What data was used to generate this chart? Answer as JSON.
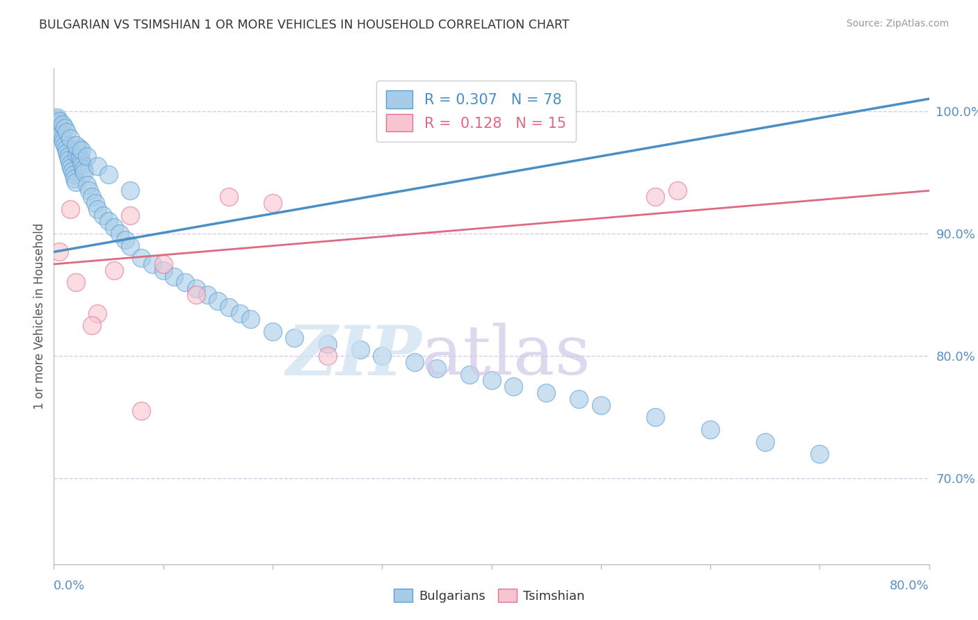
{
  "title": "BULGARIAN VS TSIMSHIAN 1 OR MORE VEHICLES IN HOUSEHOLD CORRELATION CHART",
  "source": "Source: ZipAtlas.com",
  "ylabel": "1 or more Vehicles in Household",
  "xlim": [
    0.0,
    80.0
  ],
  "ylim": [
    63.0,
    103.5
  ],
  "yticks": [
    70.0,
    80.0,
    90.0,
    100.0
  ],
  "ytick_labels": [
    "70.0%",
    "80.0%",
    "90.0%",
    "100.0%"
  ],
  "xtick_positions": [
    0.0,
    10.0,
    20.0,
    30.0,
    40.0,
    50.0,
    60.0,
    70.0,
    80.0
  ],
  "blue_R": "0.307",
  "blue_N": "78",
  "pink_R": "0.128",
  "pink_N": "15",
  "blue_fill": "#a8cce8",
  "blue_edge": "#5a9fd4",
  "pink_fill": "#f7c5d0",
  "pink_edge": "#e07090",
  "blue_line": "#4a8fc4",
  "pink_line": "#e06880",
  "grid_color": "#d8c8e8",
  "axis_color": "#bbbbbb",
  "label_color": "#5a8fc4",
  "title_color": "#333333",
  "source_color": "#999999",
  "ylabel_color": "#555555",
  "blue_scatter_x": [
    0.2,
    0.3,
    0.4,
    0.5,
    0.6,
    0.7,
    0.8,
    0.9,
    1.0,
    1.1,
    1.2,
    1.3,
    1.4,
    1.5,
    1.6,
    1.7,
    1.8,
    1.9,
    2.0,
    2.1,
    2.2,
    2.3,
    2.4,
    2.5,
    2.6,
    2.7,
    2.8,
    3.0,
    3.2,
    3.5,
    3.8,
    4.0,
    4.5,
    5.0,
    5.5,
    6.0,
    6.5,
    7.0,
    8.0,
    9.0,
    10.0,
    11.0,
    12.0,
    13.0,
    14.0,
    15.0,
    16.0,
    17.0,
    18.0,
    20.0,
    22.0,
    25.0,
    28.0,
    30.0,
    33.0,
    35.0,
    38.0,
    40.0,
    42.0,
    45.0,
    48.0,
    50.0,
    55.0,
    60.0,
    65.0,
    70.0,
    0.3,
    0.5,
    0.8,
    1.0,
    1.2,
    1.5,
    2.0,
    2.5,
    3.0,
    4.0,
    5.0,
    7.0
  ],
  "blue_scatter_y": [
    99.1,
    99.3,
    99.0,
    98.7,
    98.4,
    98.1,
    97.8,
    97.5,
    97.2,
    96.9,
    96.6,
    96.3,
    96.0,
    95.7,
    95.4,
    95.1,
    94.8,
    94.5,
    94.2,
    96.5,
    96.8,
    97.0,
    96.2,
    95.9,
    95.6,
    95.3,
    95.0,
    94.0,
    93.5,
    93.0,
    92.5,
    92.0,
    91.5,
    91.0,
    90.5,
    90.0,
    89.5,
    89.0,
    88.0,
    87.5,
    87.0,
    86.5,
    86.0,
    85.5,
    85.0,
    84.5,
    84.0,
    83.5,
    83.0,
    82.0,
    81.5,
    81.0,
    80.5,
    80.0,
    79.5,
    79.0,
    78.5,
    78.0,
    77.5,
    77.0,
    76.5,
    76.0,
    75.0,
    74.0,
    73.0,
    72.0,
    99.5,
    99.2,
    98.9,
    98.6,
    98.3,
    97.8,
    97.2,
    96.8,
    96.3,
    95.5,
    94.8,
    93.5
  ],
  "pink_scatter_x": [
    0.5,
    1.5,
    2.0,
    4.0,
    5.5,
    7.0,
    10.0,
    13.0,
    16.0,
    20.0,
    25.0,
    55.0,
    57.0,
    3.5,
    8.0
  ],
  "pink_scatter_y": [
    88.5,
    92.0,
    86.0,
    83.5,
    87.0,
    91.5,
    87.5,
    85.0,
    93.0,
    92.5,
    80.0,
    93.0,
    93.5,
    82.5,
    75.5
  ],
  "blue_trend_x0": 0.0,
  "blue_trend_y0": 88.5,
  "blue_trend_x1": 80.0,
  "blue_trend_y1": 101.0,
  "pink_trend_x0": 0.0,
  "pink_trend_y0": 87.5,
  "pink_trend_x1": 80.0,
  "pink_trend_y1": 93.5,
  "watermark_zip_color": "#cce0f0",
  "watermark_atlas_color": "#d0c8e8"
}
